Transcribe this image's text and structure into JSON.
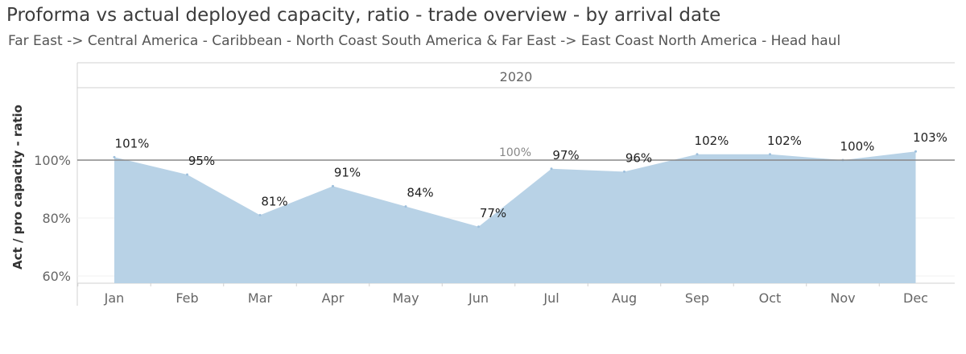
{
  "header": {
    "title": "Proforma vs actual deployed capacity, ratio - trade overview - by arrival date",
    "subtitle": "Far East -> Central America - Caribbean - North Coast South America & Far East -> East Coast North America - Head haul"
  },
  "chart_data": {
    "type": "area",
    "panel_label": "2020",
    "ylabel": "Act / pro capacity - ratio",
    "ylim": [
      0.575,
      1.25
    ],
    "yticks": [
      0.6,
      0.8,
      1.0
    ],
    "ytick_labels": [
      "60%",
      "80%",
      "100%"
    ],
    "categories": [
      "Jan",
      "Feb",
      "Mar",
      "Apr",
      "May",
      "Jun",
      "Jul",
      "Aug",
      "Sep",
      "Oct",
      "Nov",
      "Dec"
    ],
    "series": [
      {
        "values": [
          1.01,
          0.95,
          0.81,
          0.91,
          0.84,
          0.77,
          0.97,
          0.96,
          1.02,
          1.02,
          1.0,
          1.03
        ],
        "labels": [
          "101%",
          "95%",
          "81%",
          "91%",
          "84%",
          "77%",
          "97%",
          "96%",
          "102%",
          "102%",
          "100%",
          "103%"
        ],
        "color": "#b8d2e6"
      }
    ],
    "reference_line": {
      "value": 1.0,
      "label": "100%",
      "color": "#888888"
    },
    "grid": true
  }
}
